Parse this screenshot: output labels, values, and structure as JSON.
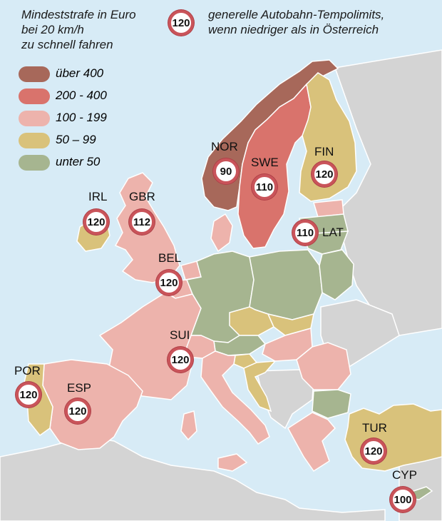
{
  "title": {
    "line1": "Mindeststrafe in Euro",
    "line2": "bei 20 km/h",
    "line3": "zu schnell fahren"
  },
  "note": {
    "sign": "120",
    "line1": "generelle Autobahn-Tempolimits,",
    "line2": "wenn niedriger als in Österreich"
  },
  "legend": [
    {
      "label": "über 400",
      "color": "#a7685a"
    },
    {
      "label": "200 - 400",
      "color": "#d9736c"
    },
    {
      "label": "100 - 199",
      "color": "#edb3ac"
    },
    {
      "label": "50 – 99",
      "color": "#d9c27b"
    },
    {
      "label": "unter 50",
      "color": "#a6b590"
    }
  ],
  "colors": {
    "sea": "#d7ebf6",
    "non_eu": "#d4d4d4",
    "sign_ring": "#c9545a"
  },
  "countries": {
    "nor": {
      "code": "NOR",
      "limit": "90"
    },
    "swe": {
      "code": "SWE",
      "limit": "110"
    },
    "fin": {
      "code": "FIN",
      "limit": "120"
    },
    "irl": {
      "code": "IRL",
      "limit": "120"
    },
    "gbr": {
      "code": "GBR",
      "limit": "112"
    },
    "lat": {
      "code": "LAT",
      "limit": "110"
    },
    "bel": {
      "code": "BEL",
      "limit": "120"
    },
    "sui": {
      "code": "SUI",
      "limit": "120"
    },
    "por": {
      "code": "POR",
      "limit": "120"
    },
    "esp": {
      "code": "ESP",
      "limit": "120"
    },
    "tur": {
      "code": "TUR",
      "limit": "120"
    },
    "cyp": {
      "code": "CYP",
      "limit": "100"
    }
  }
}
